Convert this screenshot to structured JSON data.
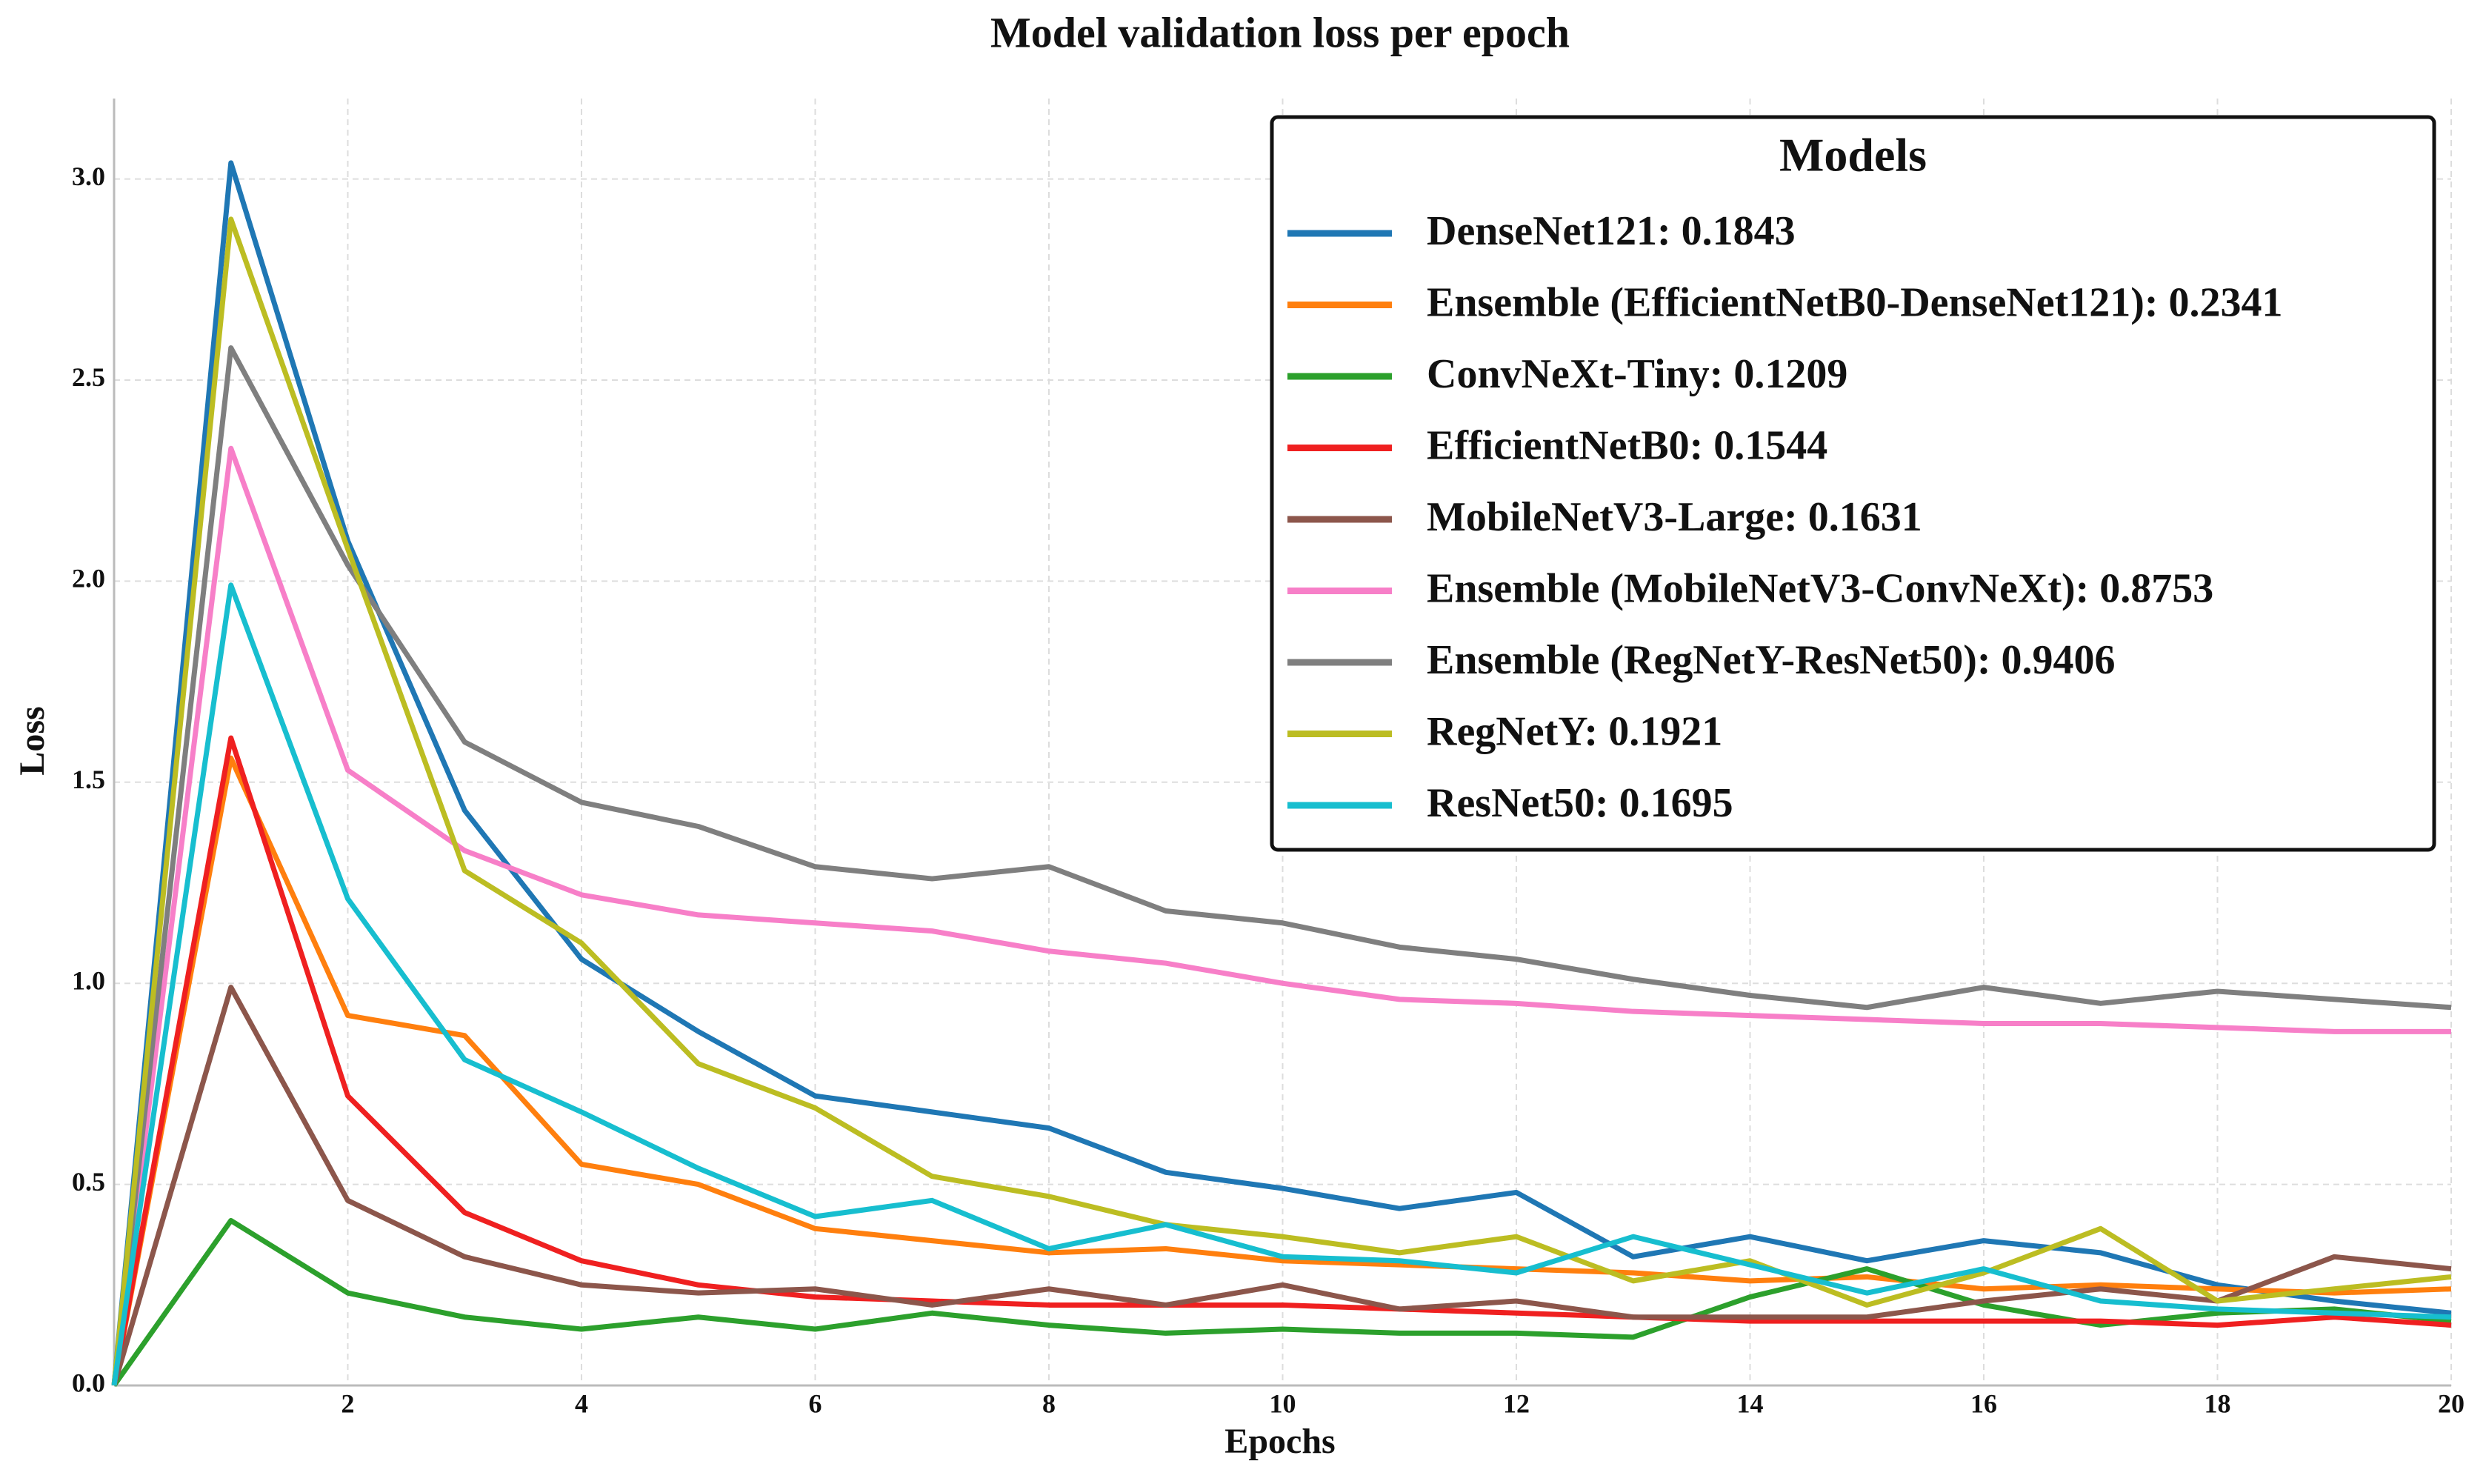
{
  "chart_data": {
    "type": "line",
    "title": "Model validation loss per epoch",
    "x_label": "Epochs",
    "y_label": "Loss",
    "x": [
      0,
      1,
      2,
      3,
      4,
      5,
      6,
      7,
      8,
      9,
      10,
      11,
      12,
      13,
      14,
      15,
      16,
      17,
      18,
      19,
      20
    ],
    "xlim": [
      0,
      20
    ],
    "xticks": [
      2,
      4,
      6,
      8,
      10,
      12,
      14,
      16,
      18,
      20
    ],
    "ylim": [
      0,
      3.2
    ],
    "yticks": [
      {
        "value": 0,
        "label": "0.0"
      },
      {
        "value": 0.5,
        "label": "0.5"
      },
      {
        "value": 1,
        "label": "1.0"
      },
      {
        "value": 1.5,
        "label": "1.5"
      },
      {
        "value": 2,
        "label": "2.0"
      },
      {
        "value": 2.5,
        "label": "2.5"
      },
      {
        "value": 3,
        "label": "3.0"
      }
    ],
    "grid": true,
    "legend": "upper right",
    "legend_title": "Models",
    "series": [
      {
        "name": "DenseNet121: 0.1843",
        "color": "#1f77b4",
        "values": [
          0,
          3.04,
          2.1,
          1.43,
          1.06,
          0.88,
          0.72,
          0.68,
          0.64,
          0.53,
          0.49,
          0.44,
          0.48,
          0.32,
          0.37,
          0.31,
          0.36,
          0.33,
          0.25,
          0.21,
          0.18
        ]
      },
      {
        "name": "Ensemble (EfficientNetB0-DenseNet121): 0.2341",
        "color": "#ff7f0e",
        "values": [
          0,
          1.56,
          0.92,
          0.87,
          0.55,
          0.5,
          0.39,
          0.36,
          0.33,
          0.34,
          0.31,
          0.3,
          0.29,
          0.28,
          0.26,
          0.27,
          0.24,
          0.25,
          0.24,
          0.23,
          0.24
        ]
      },
      {
        "name": "ConvNeXt-Tiny: 0.1209",
        "color": "#2ca02c",
        "values": [
          0,
          0.41,
          0.23,
          0.17,
          0.14,
          0.17,
          0.14,
          0.18,
          0.15,
          0.13,
          0.14,
          0.13,
          0.13,
          0.12,
          0.22,
          0.29,
          0.2,
          0.15,
          0.18,
          0.19,
          0.16
        ]
      },
      {
        "name": "EfficientNetB0: 0.1544",
        "color": "#ef2020",
        "values": [
          0,
          1.61,
          0.72,
          0.43,
          0.31,
          0.25,
          0.22,
          0.21,
          0.2,
          0.2,
          0.2,
          0.19,
          0.18,
          0.17,
          0.16,
          0.16,
          0.16,
          0.16,
          0.15,
          0.17,
          0.15
        ]
      },
      {
        "name": "MobileNetV3-Large: 0.1631",
        "color": "#8c564b",
        "values": [
          0,
          0.99,
          0.46,
          0.32,
          0.25,
          0.23,
          0.24,
          0.2,
          0.24,
          0.2,
          0.25,
          0.19,
          0.21,
          0.17,
          0.17,
          0.17,
          0.21,
          0.24,
          0.21,
          0.32,
          0.29
        ]
      },
      {
        "name": "Ensemble (MobileNetV3-ConvNeXt): 0.8753",
        "color": "#f77fc8",
        "values": [
          0,
          2.33,
          1.53,
          1.33,
          1.22,
          1.17,
          1.15,
          1.13,
          1.08,
          1.05,
          1.0,
          0.96,
          0.95,
          0.93,
          0.92,
          0.91,
          0.9,
          0.9,
          0.89,
          0.88,
          0.88
        ]
      },
      {
        "name": "Ensemble (RegNetY-ResNet50): 0.9406",
        "color": "#7f7f7f",
        "values": [
          0,
          2.58,
          2.04,
          1.6,
          1.45,
          1.39,
          1.29,
          1.26,
          1.29,
          1.18,
          1.15,
          1.09,
          1.06,
          1.01,
          0.97,
          0.94,
          0.99,
          0.95,
          0.98,
          0.96,
          0.94
        ]
      },
      {
        "name": "RegNetY: 0.1921",
        "color": "#bcbd22",
        "values": [
          0,
          2.9,
          2.08,
          1.28,
          1.1,
          0.8,
          0.69,
          0.52,
          0.47,
          0.4,
          0.37,
          0.33,
          0.37,
          0.26,
          0.31,
          0.2,
          0.28,
          0.39,
          0.21,
          0.24,
          0.27
        ]
      },
      {
        "name": "ResNet50: 0.1695",
        "color": "#17becf",
        "values": [
          0,
          1.99,
          1.21,
          0.81,
          0.68,
          0.54,
          0.42,
          0.46,
          0.34,
          0.4,
          0.32,
          0.31,
          0.28,
          0.37,
          0.3,
          0.23,
          0.29,
          0.21,
          0.19,
          0.18,
          0.17
        ]
      }
    ]
  }
}
